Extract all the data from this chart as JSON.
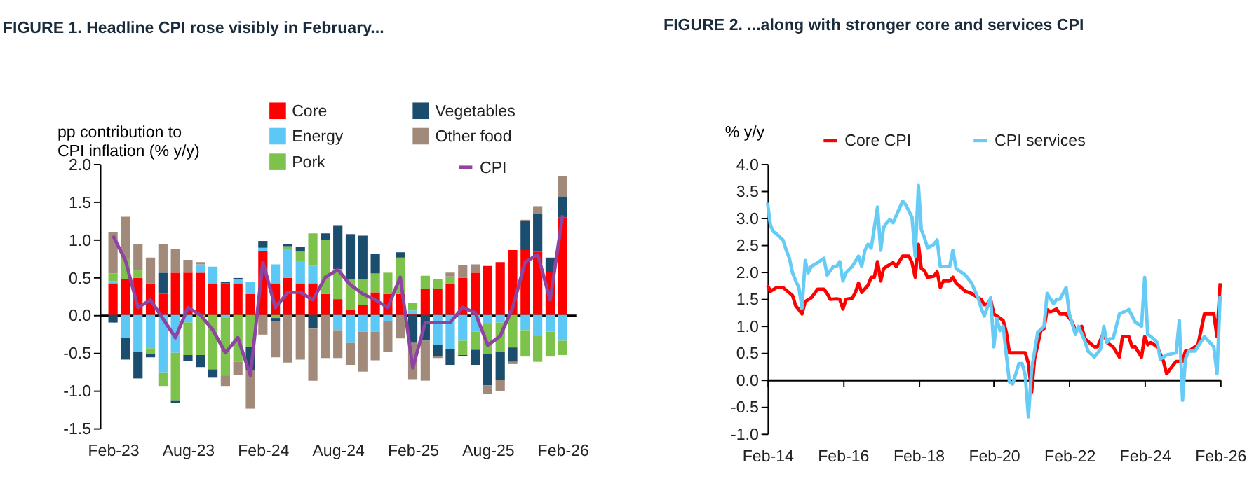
{
  "chart_data": [
    {
      "type": "bar",
      "title": "FIGURE 1. Headline CPI rose visibly in February...",
      "ylabel": "pp contribution to CPI inflation (% y/y)",
      "stacked": true,
      "legend": "top right",
      "categories": [
        "Feb-23",
        null,
        null,
        null,
        null,
        null,
        "Aug-23",
        null,
        null,
        null,
        null,
        null,
        "Feb-24",
        null,
        null,
        null,
        null,
        null,
        "Aug-24",
        null,
        null,
        null,
        null,
        null,
        "Feb-25",
        null,
        null,
        null,
        null,
        null,
        "Aug-25",
        null,
        null,
        null,
        null,
        null,
        "Feb-26"
      ],
      "series": [
        {
          "name": "Core",
          "color": "#ff0000",
          "values": [
            0.42,
            0.48,
            0.49,
            0.42,
            0.28,
            0.56,
            0.56,
            0.56,
            0.42,
            0.42,
            0.42,
            0.28,
            0.85,
            0.42,
            0.49,
            0.42,
            0.42,
            0.28,
            0.21,
            0.07,
            0.13,
            0.3,
            0.28,
            0.28,
            0.02,
            0.35,
            0.35,
            0.42,
            0.49,
            0.56,
            0.65,
            0.7,
            0.86,
            0.86,
            0.84,
            0.57,
            1.29
          ]
        },
        {
          "name": "Energy",
          "color": "#5bc8f5",
          "values": [
            0.03,
            -0.3,
            -0.49,
            -0.44,
            -0.76,
            -0.5,
            -0.1,
            0.11,
            0.22,
            -0.04,
            0.05,
            0.16,
            0.04,
            0.25,
            0.38,
            0.3,
            0.23,
            0,
            -0.2,
            -0.37,
            -0.22,
            -0.22,
            -0.08,
            0,
            0.04,
            0,
            -0.4,
            -0.45,
            -0.34,
            -0.22,
            -0.12,
            -0.1,
            0,
            -0.2,
            -0.28,
            -0.22,
            -0.34
          ]
        },
        {
          "name": "Pork",
          "color": "#7dc24b",
          "values": [
            0.1,
            0.26,
            0.1,
            -0.08,
            -0.18,
            -0.63,
            -0.43,
            -0.53,
            -0.72,
            -0.76,
            -0.62,
            -0.42,
            0,
            -0.04,
            0.04,
            0.12,
            0.43,
            0.71,
            0.4,
            0.41,
            0.35,
            0.25,
            0.28,
            0.48,
            0.1,
            0.17,
            0.13,
            0.09,
            -0.19,
            -0.24,
            -0.4,
            -0.39,
            -0.43,
            -0.35,
            -0.34,
            -0.33,
            -0.19
          ]
        },
        {
          "name": "Vegetables",
          "color": "#1a4d6e",
          "values": [
            -0.1,
            -0.29,
            -0.35,
            -0.04,
            0.28,
            -0.04,
            -0.08,
            -0.16,
            -0.11,
            0.02,
            0.02,
            -0.31,
            0.09,
            -0.04,
            0.03,
            0.06,
            -0.18,
            0.09,
            0.57,
            0.59,
            0.57,
            0.26,
            0,
            0.07,
            -0.37,
            -0.34,
            -0.14,
            -0.21,
            -0.01,
            -0.2,
            -0.41,
            -0.37,
            -0.19,
            0.38,
            0.5,
            0.19,
            0.28
          ]
        },
        {
          "name": "Other food",
          "color": "#a28a7a",
          "values": [
            0.55,
            0.56,
            0.35,
            0.34,
            0.38,
            0.31,
            0.17,
            0.03,
            0,
            -0.14,
            -0.17,
            -0.51,
            -0.26,
            -0.48,
            -0.63,
            -0.59,
            -0.69,
            -0.57,
            -0.37,
            -0.29,
            -0.53,
            -0.38,
            -0.41,
            -0.31,
            -0.48,
            -0.53,
            -0.03,
            0.05,
            0.17,
            0.11,
            -0.11,
            -0.15,
            -0.03,
            0.02,
            0.1,
            0,
            0.27
          ]
        },
        {
          "name": "CPI",
          "type": "line",
          "color": "#8e44a0",
          "values": [
            1.05,
            0.72,
            0.1,
            0.2,
            -0.05,
            -0.3,
            0.1,
            0.0,
            -0.2,
            -0.5,
            -0.3,
            -0.8,
            0.7,
            0.1,
            0.3,
            0.3,
            0.2,
            0.5,
            0.6,
            0.4,
            0.28,
            0.2,
            0.1,
            0.5,
            -0.7,
            -0.1,
            -0.1,
            -0.1,
            0.1,
            0.03,
            -0.4,
            -0.28,
            0.1,
            0.7,
            0.8,
            0.2,
            1.32
          ]
        }
      ],
      "ylim": [
        -1.5,
        2
      ],
      "yticks": [
        {
          "value": -1.5,
          "label": "-1.5"
        },
        {
          "value": -1,
          "label": "-1.0"
        },
        {
          "value": -0.5,
          "label": "-0.5"
        },
        {
          "value": 0,
          "label": "0.0"
        },
        {
          "value": 0.5,
          "label": "0.5"
        },
        {
          "value": 1,
          "label": "1.0"
        },
        {
          "value": 1.5,
          "label": "1.5"
        },
        {
          "value": 2,
          "label": "2.0"
        }
      ]
    },
    {
      "type": "line",
      "title": "FIGURE 2. ...along with stronger core and services CPI",
      "ylabel": "% y/y",
      "legend": "top",
      "series": [
        {
          "name": "Core CPI",
          "color": "#ff0000",
          "x": [
            "2014-02",
            "2014-03",
            "2014-05",
            "2014-07",
            "2014-10",
            "2014-11",
            "2014-12",
            "2015-01",
            "2015-02",
            "2015-04",
            "2015-06",
            "2015-08",
            "2015-09",
            "2015-10",
            "2015-12",
            "2016-01",
            "2016-02",
            "2016-03",
            "2016-05",
            "2016-06",
            "2016-07",
            "2016-08",
            "2016-10",
            "2016-11",
            "2016-12",
            "2017-01",
            "2017-02",
            "2017-03",
            "2017-04",
            "2017-06",
            "2017-07",
            "2017-09",
            "2017-11",
            "2017-12",
            "2018-01",
            "2018-02",
            "2018-03",
            "2018-04",
            "2018-05",
            "2018-07",
            "2018-08",
            "2018-09",
            "2018-10",
            "2018-12",
            "2019-01",
            "2019-02",
            "2019-05",
            "2019-07",
            "2019-09",
            "2019-10",
            "2019-11",
            "2019-12",
            "2020-01",
            "2020-02",
            "2020-03",
            "2020-05",
            "2020-06",
            "2020-07",
            "2020-12",
            "2021-01",
            "2021-02",
            "2021-03",
            "2021-05",
            "2021-06",
            "2021-07",
            "2021-08",
            "2021-10",
            "2021-11",
            "2022-01",
            "2022-03",
            "2022-04",
            "2022-06",
            "2022-07",
            "2022-10",
            "2022-11",
            "2023-01",
            "2023-02",
            "2023-04",
            "2023-06",
            "2023-07",
            "2023-09",
            "2023-10",
            "2023-11",
            "2024-01",
            "2024-02",
            "2024-03",
            "2024-04",
            "2024-06",
            "2024-08",
            "2024-09",
            "2024-10",
            "2024-12",
            "2025-02",
            "2025-03",
            "2025-04",
            "2025-07",
            "2025-09",
            "2025-12",
            "2026-01",
            "2026-02"
          ],
          "values": [
            1.75,
            1.64,
            1.71,
            1.71,
            1.56,
            1.37,
            1.3,
            1.22,
            1.45,
            1.52,
            1.68,
            1.68,
            1.6,
            1.49,
            1.5,
            1.49,
            1.31,
            1.49,
            1.51,
            1.62,
            1.79,
            1.62,
            1.75,
            1.9,
            1.9,
            2.19,
            1.83,
            2.06,
            2.1,
            2.17,
            2.1,
            2.29,
            2.29,
            2.17,
            1.9,
            2.51,
            2.06,
            2.02,
            1.9,
            1.92,
            2.0,
            1.71,
            1.83,
            1.83,
            1.9,
            1.79,
            1.64,
            1.6,
            1.52,
            1.49,
            1.39,
            1.41,
            1.49,
            1.22,
            1.18,
            1.1,
            0.88,
            0.5,
            0.5,
            0.3,
            -0.23,
            0.38,
            0.91,
            0.95,
            1.3,
            1.26,
            1.31,
            1.22,
            1.22,
            1.07,
            0.91,
            0.99,
            0.76,
            0.61,
            0.61,
            0.88,
            0.69,
            0.61,
            0.42,
            0.8,
            0.8,
            0.61,
            0.61,
            0.42,
            0.8,
            0.65,
            0.69,
            0.61,
            0.34,
            0.11,
            0.19,
            0.34,
            0.34,
            0.53,
            0.53,
            0.65,
            1.22,
            1.22,
            0.8,
            1.79
          ]
        },
        {
          "name": "CPI services",
          "color": "#66ccf5",
          "x": [
            "2014-02",
            "2014-03",
            "2014-04",
            "2014-05",
            "2014-07",
            "2014-08",
            "2014-09",
            "2014-10",
            "2014-11",
            "2014-12",
            "2015-01",
            "2015-02",
            "2015-03",
            "2015-04",
            "2015-06",
            "2015-08",
            "2015-09",
            "2015-11",
            "2015-12",
            "2016-01",
            "2016-02",
            "2016-03",
            "2016-05",
            "2016-07",
            "2016-08",
            "2016-09",
            "2016-10",
            "2016-11",
            "2017-01",
            "2017-02",
            "2017-03",
            "2017-04",
            "2017-05",
            "2017-06",
            "2017-09",
            "2017-10",
            "2017-12",
            "2018-01",
            "2018-02",
            "2018-03",
            "2018-04",
            "2018-05",
            "2018-07",
            "2018-08",
            "2018-09",
            "2018-12",
            "2019-01",
            "2019-02",
            "2019-05",
            "2019-07",
            "2019-09",
            "2019-10",
            "2019-11",
            "2020-01",
            "2020-02",
            "2020-03",
            "2020-04",
            "2020-05",
            "2020-06",
            "2020-07",
            "2020-08",
            "2020-10",
            "2020-11",
            "2020-12",
            "2021-01",
            "2021-02",
            "2021-04",
            "2021-06",
            "2021-07",
            "2021-09",
            "2021-10",
            "2021-11",
            "2022-01",
            "2022-02",
            "2022-04",
            "2022-05",
            "2022-07",
            "2022-08",
            "2022-10",
            "2022-12",
            "2023-01",
            "2023-02",
            "2023-03",
            "2023-04",
            "2023-06",
            "2023-09",
            "2023-11",
            "2024-01",
            "2024-02",
            "2024-03",
            "2024-04",
            "2024-06",
            "2024-07",
            "2024-09",
            "2024-12",
            "2025-01",
            "2025-02",
            "2025-03",
            "2025-04",
            "2025-06",
            "2025-09",
            "2025-12",
            "2026-01",
            "2026-02"
          ],
          "values": [
            3.28,
            2.86,
            2.74,
            2.7,
            2.59,
            2.4,
            2.25,
            1.98,
            1.83,
            1.71,
            1.33,
            2.21,
            1.98,
            2.1,
            2.17,
            2.25,
            1.94,
            2.1,
            2.1,
            2.19,
            1.83,
            1.98,
            2.1,
            2.29,
            2.1,
            2.4,
            2.51,
            2.44,
            3.2,
            2.4,
            2.82,
            2.91,
            2.97,
            2.91,
            3.31,
            3.24,
            3.01,
            2.29,
            3.6,
            2.78,
            2.63,
            2.44,
            2.51,
            2.59,
            2.1,
            2.1,
            2.4,
            2.06,
            1.94,
            1.79,
            1.52,
            1.33,
            1.18,
            1.52,
            0.61,
            1.14,
            0.91,
            0.99,
            0.46,
            -0.04,
            -0.08,
            0.3,
            0.3,
            0.08,
            -0.69,
            0.19,
            0.88,
            0.99,
            1.6,
            1.41,
            1.49,
            1.49,
            1.71,
            1.22,
            0.84,
            0.99,
            0.72,
            0.53,
            0.42,
            0.57,
            0.99,
            0.69,
            0.76,
            0.76,
            1.22,
            1.3,
            1.07,
            0.99,
            1.9,
            0.84,
            0.8,
            0.69,
            0.38,
            0.46,
            0.5,
            1.1,
            -0.38,
            0.38,
            0.53,
            0.53,
            0.8,
            0.61,
            0.11,
            1.56
          ]
        }
      ],
      "xlim": [
        "2014-02",
        "2026-02"
      ],
      "xticks": [
        {
          "value": "2014-02",
          "label": "Feb-14"
        },
        {
          "value": "2016-02",
          "label": "Feb-16"
        },
        {
          "value": "2018-02",
          "label": "Feb-18"
        },
        {
          "value": "2020-02",
          "label": "Feb-20"
        },
        {
          "value": "2022-02",
          "label": "Feb-22"
        },
        {
          "value": "2024-02",
          "label": "Feb-24"
        },
        {
          "value": "2026-02",
          "label": "Feb-26"
        }
      ],
      "ylim": [
        -1,
        4
      ],
      "yticks": [
        {
          "value": -1,
          "label": "-1.0"
        },
        {
          "value": -0.5,
          "label": "-0.5"
        },
        {
          "value": 0,
          "label": "0.0"
        },
        {
          "value": 0.5,
          "label": "0.5"
        },
        {
          "value": 1,
          "label": "1.0"
        },
        {
          "value": 1.5,
          "label": "1.5"
        },
        {
          "value": 2,
          "label": "2.0"
        },
        {
          "value": 2.5,
          "label": "2.5"
        },
        {
          "value": 3,
          "label": "3.0"
        },
        {
          "value": 3.5,
          "label": "3.5"
        },
        {
          "value": 4,
          "label": "4.0"
        }
      ]
    }
  ]
}
